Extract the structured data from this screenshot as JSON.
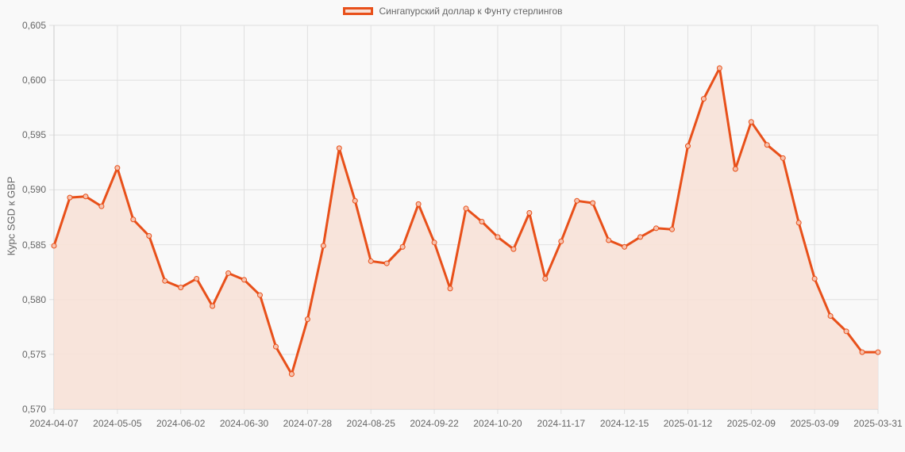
{
  "legend": {
    "label": "Сингапурский доллар к Фунту стерлингов",
    "line_color": "#e8501a",
    "fill_color": "#f8e0d6"
  },
  "axes": {
    "ylabel": "Курс SGD к GBP",
    "yticks": [
      "0,605",
      "0,600",
      "0,595",
      "0,590",
      "0,585",
      "0,580",
      "0,575",
      "0,570"
    ],
    "xticks": [
      "2024-04-07",
      "2024-05-05",
      "2024-06-02",
      "2024-06-30",
      "2024-07-28",
      "2024-08-25",
      "2024-09-22",
      "2024-10-20",
      "2024-11-17",
      "2024-12-15",
      "2025-01-12",
      "2025-02-09",
      "2025-03-09",
      "2025-03-31"
    ]
  },
  "chart_data": {
    "type": "area",
    "title": "",
    "xlabel": "",
    "ylabel": "Курс SGD к GBP",
    "ylim": [
      0.57,
      0.605
    ],
    "grid": true,
    "legend_position": "top",
    "series": [
      {
        "name": "Сингапурский доллар к Фунту стерлингов",
        "color": "#e8501a",
        "values": [
          0.5849,
          0.5893,
          0.5894,
          0.5885,
          0.592,
          0.5873,
          0.5858,
          0.5817,
          0.5811,
          0.5819,
          0.5794,
          0.5824,
          0.5818,
          0.5804,
          0.5757,
          0.5732,
          0.5782,
          0.5849,
          0.5938,
          0.589,
          0.5835,
          0.5833,
          0.5848,
          0.5887,
          0.5852,
          0.581,
          0.5883,
          0.5871,
          0.5857,
          0.5846,
          0.5879,
          0.5819,
          0.5853,
          0.589,
          0.5888,
          0.5854,
          0.5848,
          0.5857,
          0.5865,
          0.5864,
          0.594,
          0.5983,
          0.6011,
          0.5919,
          0.5962,
          0.5941,
          0.5929,
          0.587,
          0.5819,
          0.5785,
          0.5771,
          0.5752,
          0.5752
        ]
      }
    ],
    "x_start": "2024-04-07",
    "x_end": "2025-03-31",
    "x_step": "weekly",
    "categories_tick_labels": [
      "2024-04-07",
      "2024-05-05",
      "2024-06-02",
      "2024-06-30",
      "2024-07-28",
      "2024-08-25",
      "2024-09-22",
      "2024-10-20",
      "2024-11-17",
      "2024-12-15",
      "2025-01-12",
      "2025-02-09",
      "2025-03-09",
      "2025-03-31"
    ]
  }
}
